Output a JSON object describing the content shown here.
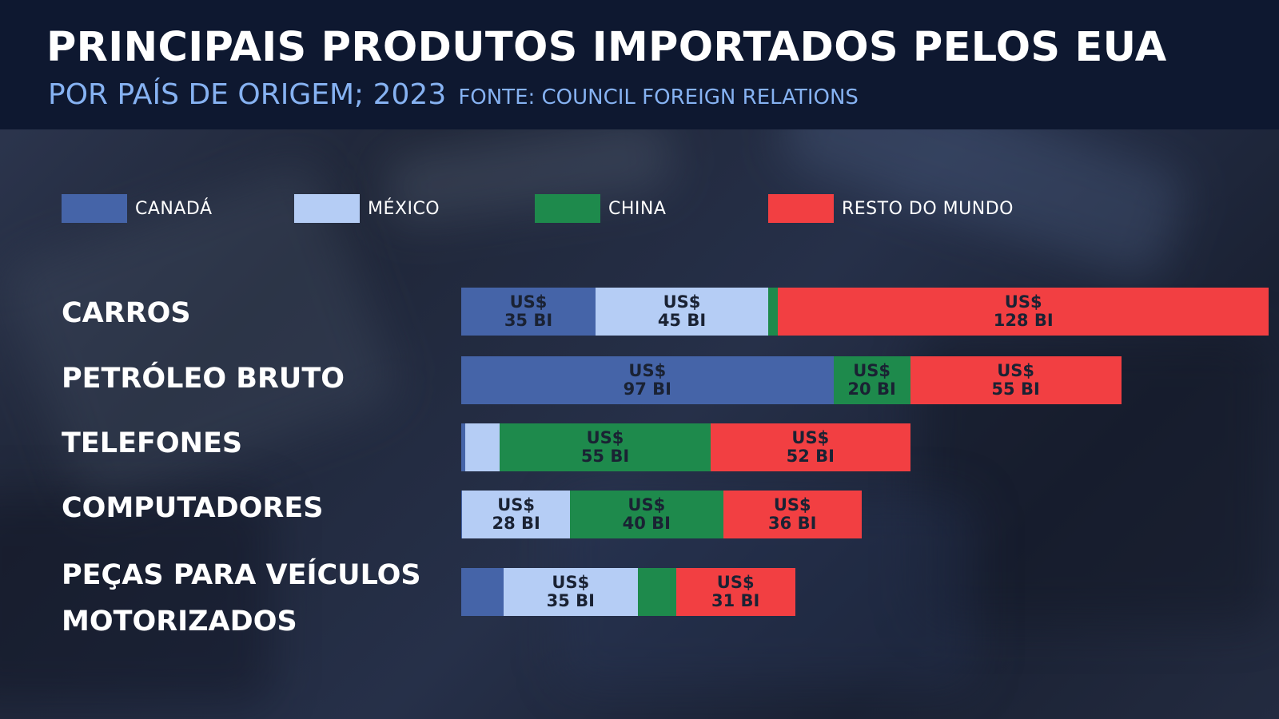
{
  "header": {
    "title": "PRINCIPAIS PRODUTOS IMPORTADOS PELOS EUA",
    "subtitle": "POR PAÍS DE ORIGEM; 2023",
    "source": "FONTE: COUNCIL FOREIGN RELATIONS"
  },
  "colors": {
    "canada": "#4564a8",
    "mexico": "#b5cdf5",
    "china": "#1e8a4c",
    "rest": "#f23f42"
  },
  "chart_data": {
    "type": "bar",
    "orientation": "horizontal",
    "stacked": true,
    "unit": "US$ bilhões",
    "series": [
      {
        "name": "CANADÁ",
        "key": "canada"
      },
      {
        "name": "MÉXICO",
        "key": "mexico"
      },
      {
        "name": "CHINA",
        "key": "china"
      },
      {
        "name": "RESTO DO MUNDO",
        "key": "rest"
      }
    ],
    "categories": [
      {
        "label": "CARROS",
        "values": {
          "canada": 35,
          "mexico": 45,
          "china": 2.5,
          "rest": 128
        },
        "labels": {
          "canada": [
            "US$",
            "35 BI"
          ],
          "mexico": [
            "US$",
            "45 BI"
          ],
          "rest": [
            "US$",
            "128 BI"
          ]
        }
      },
      {
        "label": "PETRÓLEO BRUTO",
        "values": {
          "canada": 97,
          "mexico": 0,
          "china": 20,
          "rest": 55
        },
        "labels": {
          "canada": [
            "US$",
            "97 BI"
          ],
          "china": [
            "US$",
            "20 BI"
          ],
          "rest": [
            "US$",
            "55 BI"
          ]
        }
      },
      {
        "label": "TELEFONES",
        "values": {
          "canada": 1,
          "mexico": 9,
          "china": 55,
          "rest": 52
        },
        "labels": {
          "china": [
            "US$",
            "55 BI"
          ],
          "rest": [
            "US$",
            "52 BI"
          ]
        }
      },
      {
        "label": "COMPUTADORES",
        "values": {
          "canada": 0.3,
          "mexico": 28,
          "china": 40,
          "rest": 36
        },
        "labels": {
          "mexico": [
            "US$",
            "28 BI"
          ],
          "china": [
            "US$",
            "40 BI"
          ],
          "rest": [
            "US$",
            "36 BI"
          ]
        }
      },
      {
        "label": [
          "PEÇAS PARA VEÍCULOS",
          "MOTORIZADOS"
        ],
        "values": {
          "canada": 11,
          "mexico": 35,
          "china": 10,
          "rest": 31
        },
        "labels": {
          "mexico": [
            "US$",
            "35 BI"
          ],
          "rest": [
            "US$",
            "31 BI"
          ]
        }
      }
    ]
  }
}
